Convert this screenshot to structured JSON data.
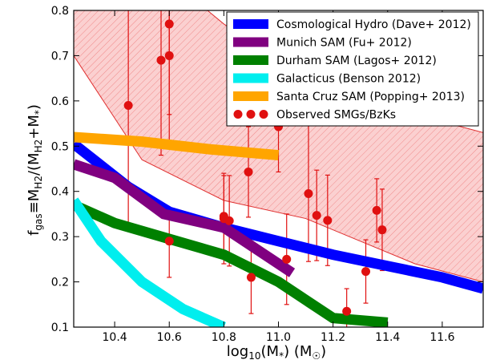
{
  "chart_data": {
    "type": "line",
    "xlabel_main": "log",
    "xlabel_sub": "10",
    "xlabel_rest": "(M",
    "xlabel_star": "*",
    "xlabel_close": ") (M",
    "xlabel_sun": "☉",
    "xlabel_end": ")",
    "ylabel_main": "f",
    "ylabel_sub": "gas",
    "ylabel_eq": "≡M",
    "ylabel_h2": "H2",
    "ylabel_div": "/(M",
    "ylabel_h2b": "H2",
    "ylabel_plus": "+M",
    "ylabel_star": "*",
    "ylabel_end": ")",
    "xlim": [
      10.25,
      11.75
    ],
    "ylim": [
      0.1,
      0.8
    ],
    "xticks": [
      "10.4",
      "10.6",
      "10.8",
      "11.0",
      "11.2",
      "11.4",
      "11.6"
    ],
    "xtick_values": [
      10.4,
      10.6,
      10.8,
      11.0,
      11.2,
      11.4,
      11.6
    ],
    "yticks": [
      "0.1",
      "0.2",
      "0.3",
      "0.4",
      "0.5",
      "0.6",
      "0.7",
      "0.8"
    ],
    "ytick_values": [
      0.1,
      0.2,
      0.3,
      0.4,
      0.5,
      0.6,
      0.7,
      0.8
    ],
    "band": {
      "color": "#f4a6a6",
      "edge": "#e03030",
      "upper": [
        [
          10.25,
          0.95
        ],
        [
          10.6,
          0.87
        ],
        [
          10.8,
          0.77
        ],
        [
          11.0,
          0.69
        ],
        [
          11.2,
          0.62
        ],
        [
          11.5,
          0.57
        ],
        [
          11.75,
          0.53
        ]
      ],
      "lower": [
        [
          10.25,
          0.7
        ],
        [
          10.5,
          0.47
        ],
        [
          10.8,
          0.38
        ],
        [
          11.1,
          0.34
        ],
        [
          11.3,
          0.29
        ],
        [
          11.5,
          0.24
        ],
        [
          11.75,
          0.2
        ]
      ]
    },
    "series": [
      {
        "name": "Cosmological Hydro (Dave+ 2012)",
        "color": "#0000ff",
        "points": [
          [
            10.25,
            0.505
          ],
          [
            10.45,
            0.41
          ],
          [
            10.6,
            0.355
          ],
          [
            10.8,
            0.32
          ],
          [
            11.0,
            0.29
          ],
          [
            11.2,
            0.26
          ],
          [
            11.4,
            0.235
          ],
          [
            11.6,
            0.21
          ],
          [
            11.75,
            0.185
          ]
        ]
      },
      {
        "name": "Munich SAM (Fu+ 2012)",
        "color": "#800080",
        "points": [
          [
            10.25,
            0.46
          ],
          [
            10.4,
            0.43
          ],
          [
            10.58,
            0.35
          ],
          [
            10.8,
            0.32
          ],
          [
            10.9,
            0.28
          ],
          [
            11.05,
            0.22
          ]
        ]
      },
      {
        "name": "Durham SAM (Lagos+ 2012)",
        "color": "#008000",
        "points": [
          [
            10.25,
            0.37
          ],
          [
            10.4,
            0.33
          ],
          [
            10.6,
            0.295
          ],
          [
            10.8,
            0.26
          ],
          [
            11.0,
            0.2
          ],
          [
            11.2,
            0.12
          ],
          [
            11.4,
            0.11
          ]
        ]
      },
      {
        "name": "Galacticus (Benson 2012)",
        "color": "#00eeee",
        "points": [
          [
            10.25,
            0.38
          ],
          [
            10.35,
            0.29
          ],
          [
            10.5,
            0.2
          ],
          [
            10.65,
            0.14
          ],
          [
            10.8,
            0.1
          ]
        ]
      },
      {
        "name": "Santa Cruz SAM (Popping+ 2013)",
        "color": "#ffa500",
        "points": [
          [
            10.25,
            0.52
          ],
          [
            10.5,
            0.51
          ],
          [
            10.75,
            0.493
          ],
          [
            11.0,
            0.48
          ]
        ]
      }
    ],
    "observed": {
      "name": "Observed SMGs/BzKs",
      "color": "#e01010",
      "points": [
        [
          10.45,
          0.59,
          0.26,
          0.3
        ],
        [
          10.57,
          0.69,
          0.21,
          0.2
        ],
        [
          10.6,
          0.77,
          0.2,
          0.2
        ],
        [
          10.6,
          0.7,
          0.2,
          0.24
        ],
        [
          10.6,
          0.29,
          0.08,
          0.07
        ],
        [
          10.8,
          0.345,
          0.09,
          0.09
        ],
        [
          10.8,
          0.34,
          0.1,
          0.1
        ],
        [
          10.82,
          0.335,
          0.1,
          0.1
        ],
        [
          10.89,
          0.443,
          0.1,
          0.1
        ],
        [
          10.9,
          0.21,
          0.08,
          0.08
        ],
        [
          11.0,
          0.543,
          0.1,
          0.08
        ],
        [
          11.03,
          0.25,
          0.1,
          0.1
        ],
        [
          11.11,
          0.395,
          0.15,
          0.15
        ],
        [
          11.14,
          0.347,
          0.1,
          0.1
        ],
        [
          11.18,
          0.336,
          0.1,
          0.1
        ],
        [
          11.25,
          0.135,
          0.05,
          0.05
        ],
        [
          11.32,
          0.223,
          0.07,
          0.07
        ],
        [
          11.36,
          0.358,
          0.07,
          0.07
        ],
        [
          11.38,
          0.315,
          0.09,
          0.09
        ]
      ]
    },
    "legend_placement": "top-right",
    "grid": false
  }
}
